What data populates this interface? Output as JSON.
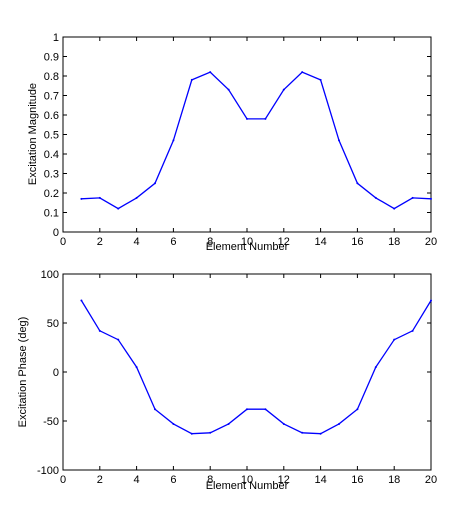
{
  "chart_data": [
    {
      "type": "line",
      "xlabel": "Element Number",
      "ylabel": "Excitation Magnitude",
      "xlim": [
        0,
        20
      ],
      "ylim": [
        0,
        1
      ],
      "xticks": [
        0,
        2,
        4,
        6,
        8,
        10,
        12,
        14,
        16,
        18,
        20
      ],
      "xtick_labels": [
        "0",
        "2",
        "4",
        "6",
        "8",
        "10",
        "12",
        "14",
        "16",
        "18",
        "20"
      ],
      "yticks": [
        0,
        0.1,
        0.2,
        0.3,
        0.4,
        0.5,
        0.6,
        0.7,
        0.8,
        0.9,
        1
      ],
      "ytick_labels": [
        "0",
        "0.1",
        "0.2",
        "0.3",
        "0.4",
        "0.5",
        "0.6",
        "0.7",
        "0.8",
        "0.9",
        "1"
      ],
      "grid": false,
      "series": [
        {
          "color": "#0000ff",
          "x": [
            1,
            2,
            3,
            4,
            5,
            6,
            7,
            8,
            9,
            10,
            11,
            12,
            13,
            14,
            15,
            16,
            17,
            18,
            19,
            20
          ],
          "y": [
            0.17,
            0.175,
            0.12,
            0.175,
            0.25,
            0.47,
            0.78,
            0.82,
            0.73,
            0.58,
            0.58,
            0.73,
            0.82,
            0.78,
            0.47,
            0.25,
            0.175,
            0.12,
            0.175,
            0.17
          ]
        }
      ]
    },
    {
      "type": "line",
      "xlabel": "Element Number",
      "ylabel": "Excitation Phase (deg)",
      "xlim": [
        0,
        20
      ],
      "ylim": [
        -100,
        100
      ],
      "xticks": [
        0,
        2,
        4,
        6,
        8,
        10,
        12,
        14,
        16,
        18,
        20
      ],
      "xtick_labels": [
        "0",
        "2",
        "4",
        "6",
        "8",
        "10",
        "12",
        "14",
        "16",
        "18",
        "20"
      ],
      "yticks": [
        -100,
        -50,
        0,
        50,
        100
      ],
      "ytick_labels": [
        "-100",
        "-50",
        "0",
        "50",
        "100"
      ],
      "grid": false,
      "series": [
        {
          "color": "#0000ff",
          "x": [
            1,
            2,
            3,
            4,
            5,
            6,
            7,
            8,
            9,
            10,
            11,
            12,
            13,
            14,
            15,
            16,
            17,
            18,
            19,
            20
          ],
          "y": [
            73,
            42,
            33,
            5,
            -38,
            -53,
            -63,
            -62,
            -53,
            -38,
            -38,
            -53,
            -62,
            -63,
            -53,
            -38,
            5,
            33,
            42,
            73
          ]
        }
      ]
    }
  ]
}
